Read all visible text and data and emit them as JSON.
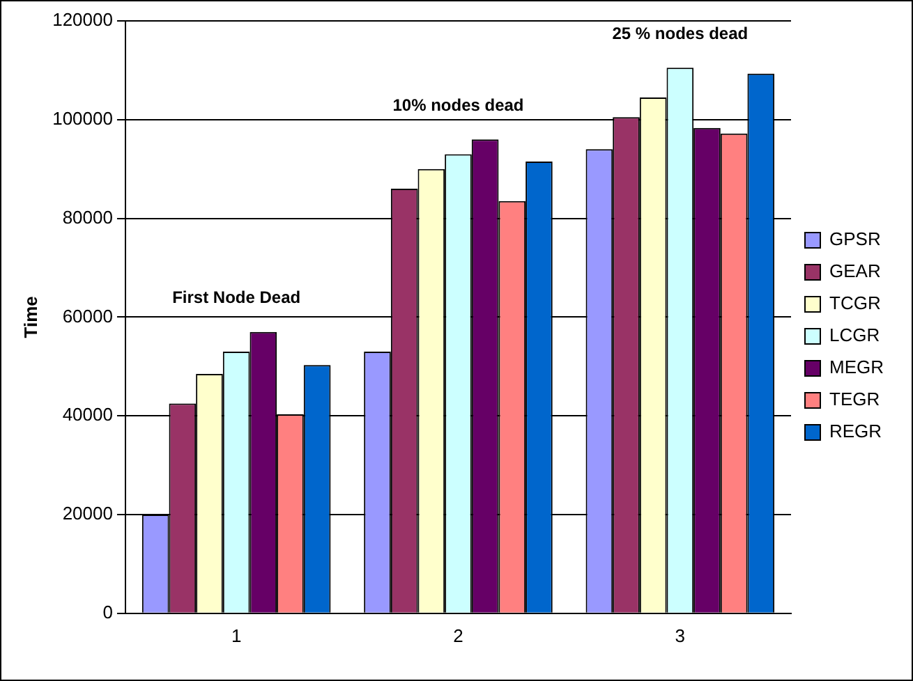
{
  "chart_data": {
    "type": "bar",
    "ylabel": "Time",
    "categories": [
      "1",
      "2",
      "3"
    ],
    "series": [
      {
        "name": "GPSR",
        "color": "#9999ff",
        "values": [
          20000,
          53000,
          94000
        ]
      },
      {
        "name": "GEAR",
        "color": "#993366",
        "values": [
          42500,
          86000,
          100500
        ]
      },
      {
        "name": "TCGR",
        "color": "#ffffcc",
        "values": [
          48500,
          90000,
          104500
        ]
      },
      {
        "name": "LCGR",
        "color": "#ccffff",
        "values": [
          53000,
          93000,
          110500
        ]
      },
      {
        "name": "MEGR",
        "color": "#660066",
        "values": [
          57000,
          96000,
          98300
        ]
      },
      {
        "name": "TEGR",
        "color": "#ff8080",
        "values": [
          40300,
          83500,
          97200
        ]
      },
      {
        "name": "REGR",
        "color": "#0066cc",
        "values": [
          50300,
          91500,
          109300
        ]
      }
    ],
    "ylim": [
      0,
      120000
    ],
    "yticks": [
      0,
      20000,
      40000,
      60000,
      80000,
      100000,
      120000
    ],
    "grid": "y",
    "legend": "right",
    "annotations": [
      "First Node Dead",
      "10% nodes dead",
      "25 % nodes dead"
    ]
  }
}
